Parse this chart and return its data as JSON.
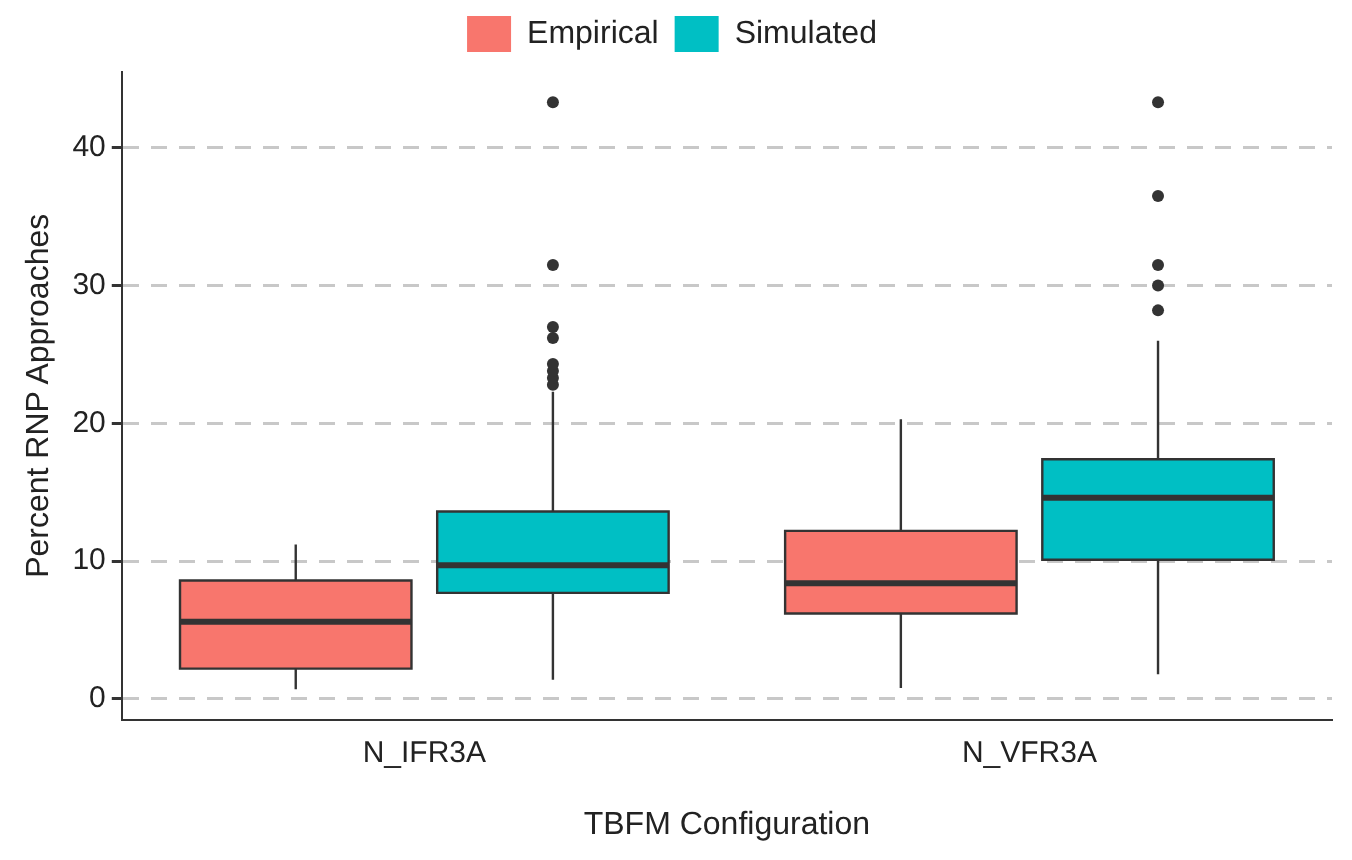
{
  "chart_data": {
    "type": "box",
    "xlabel": "TBFM Configuration",
    "ylabel": "Percent RNP Approaches",
    "categories": [
      "N_IFR3A",
      "N_VFR3A"
    ],
    "series": [
      {
        "name": "Empirical",
        "color": "#f8766d",
        "boxes": [
          {
            "low": 0.7,
            "q1": 2.2,
            "median": 5.6,
            "q3": 8.6,
            "high": 11.2
          },
          {
            "low": 0.8,
            "q1": 6.2,
            "median": 8.4,
            "q3": 12.2,
            "high": 20.3
          }
        ]
      },
      {
        "name": "Simulated",
        "color": "#00bfc4",
        "boxes": [
          {
            "low": 1.4,
            "q1": 7.7,
            "median": 9.7,
            "q3": 13.6,
            "high": 22.3,
            "outliers": [
              22.8,
              23.3,
              23.8,
              24.3,
              26.2,
              27,
              31.5,
              43.3
            ]
          },
          {
            "low": 1.8,
            "q1": 10.1,
            "median": 14.6,
            "q3": 17.4,
            "high": 26,
            "outliers": [
              28.2,
              30,
              31.5,
              36.5,
              43.3
            ]
          }
        ]
      }
    ],
    "ylim": [
      -1.5,
      45.5
    ],
    "yticks": [
      0,
      10,
      20,
      30,
      40
    ],
    "grid": "y",
    "legend": "top"
  }
}
